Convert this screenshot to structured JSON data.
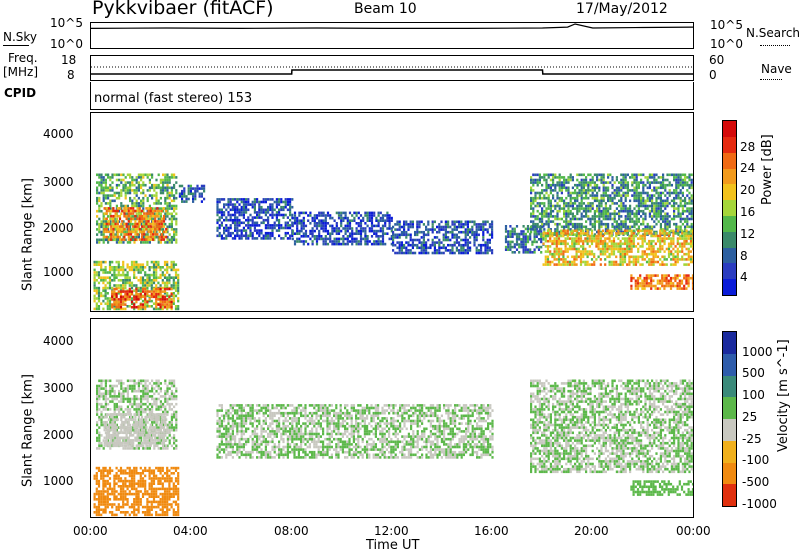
{
  "header": {
    "radar": "Pykkvibaer (fitACF)",
    "beam": "Beam 10",
    "date": "17/May/2012"
  },
  "nsky_panel": {
    "left_label": "N.Sky",
    "left_ticks": [
      "10^5",
      "10^0"
    ],
    "right_label": "N.Search",
    "right_ticks": [
      "10^5",
      "10^0"
    ]
  },
  "freq_panel": {
    "left_label_top": "Freq.",
    "left_label_unit": "[MHz]",
    "left_ticks": [
      "18",
      "8"
    ],
    "right_label": "Nave",
    "right_ticks": [
      "60",
      "0"
    ],
    "cpid_label": "CPID",
    "mode_text": "normal (fast stereo) 153"
  },
  "power_panel": {
    "ylabel": "Slant Range [km]",
    "yticks": [
      "4000",
      "3000",
      "2000",
      "1000"
    ],
    "colorbar_label": "Power [dB]",
    "colorbar_ticks": [
      "28",
      "24",
      "20",
      "16",
      "12",
      "8",
      "4"
    ],
    "colors": [
      "#0a1cd8",
      "#2a3cc0",
      "#2c5fa0",
      "#3a8a6a",
      "#52b84a",
      "#a5d63a",
      "#f2c21c",
      "#f29a1c",
      "#f06a14",
      "#e52a10",
      "#d40a0a"
    ]
  },
  "velocity_panel": {
    "ylabel": "Slant Range [km]",
    "yticks": [
      "4000",
      "3000",
      "2000",
      "1000"
    ],
    "colorbar_label": "Velocity [m s^-1]",
    "colorbar_ticks": [
      "1000",
      "500",
      "100",
      "25",
      "-25",
      "-100",
      "-500",
      "-1000"
    ],
    "colors": [
      "#1a2a9e",
      "#2e5cab",
      "#3a8a7a",
      "#5cb84a",
      "#c8c8c0",
      "#f0b01c",
      "#f08a10",
      "#e0300e"
    ]
  },
  "xaxis": {
    "ticks": [
      "00:00",
      "04:00",
      "08:00",
      "12:00",
      "16:00",
      "20:00",
      "00:00"
    ],
    "label": "Time UT"
  },
  "chart_data": [
    {
      "type": "line",
      "name": "nsky",
      "description_ref": "noise sky level (log scale 10^0..10^5)",
      "x_hours": [
        0,
        3,
        6,
        9,
        12,
        15,
        18,
        19,
        19.3,
        20,
        22,
        24
      ],
      "y_log10": [
        4.0,
        4.1,
        4.0,
        4.1,
        4.0,
        4.0,
        4.1,
        4.3,
        5.0,
        4.1,
        4.2,
        4.3
      ],
      "ylim_log10": [
        0,
        5
      ]
    },
    {
      "type": "line",
      "name": "freq",
      "x_hours": [
        0,
        2,
        3,
        8,
        8.01,
        18,
        18.01,
        24
      ],
      "y_mhz": [
        10,
        10,
        10,
        10,
        12,
        12,
        10,
        10
      ],
      "ylim": [
        8,
        18
      ]
    },
    {
      "type": "heatmap",
      "name": "power",
      "xlim_hours": [
        0,
        24
      ],
      "ylim_km": [
        180,
        4600
      ],
      "zlim_db": [
        0,
        30
      ],
      "regions": [
        {
          "t0": 0.2,
          "t1": 3.4,
          "r0": 1700,
          "r1": 3250,
          "value": 12
        },
        {
          "t0": 0.5,
          "t1": 3.0,
          "r0": 1750,
          "r1": 2500,
          "value": 22
        },
        {
          "t0": 0.1,
          "t1": 3.5,
          "r0": 250,
          "r1": 1300,
          "value": 14
        },
        {
          "t0": 0.8,
          "t1": 3.2,
          "r0": 250,
          "r1": 700,
          "value": 24
        },
        {
          "t0": 3.5,
          "t1": 4.5,
          "r0": 2600,
          "r1": 3000,
          "value": 6
        },
        {
          "t0": 5.0,
          "t1": 8.0,
          "r0": 1800,
          "r1": 2700,
          "value": 5
        },
        {
          "t0": 8.0,
          "t1": 12.0,
          "r0": 1700,
          "r1": 2400,
          "value": 5
        },
        {
          "t0": 12.0,
          "t1": 16.0,
          "r0": 1500,
          "r1": 2200,
          "value": 5
        },
        {
          "t0": 16.5,
          "t1": 18.0,
          "r0": 1500,
          "r1": 2100,
          "value": 8
        },
        {
          "t0": 17.5,
          "t1": 24.0,
          "r0": 1900,
          "r1": 3250,
          "value": 10
        },
        {
          "t0": 18.0,
          "t1": 24.0,
          "r0": 1200,
          "r1": 2000,
          "value": 18
        },
        {
          "t0": 21.5,
          "t1": 24.0,
          "r0": 700,
          "r1": 1000,
          "value": 22
        }
      ]
    },
    {
      "type": "heatmap",
      "name": "velocity",
      "xlim_hours": [
        0,
        24
      ],
      "ylim_km": [
        180,
        4600
      ],
      "zlim_ms": [
        -1000,
        1000
      ],
      "regions": [
        {
          "t0": 0.2,
          "t1": 3.4,
          "r0": 1700,
          "r1": 3250,
          "value": 0
        },
        {
          "t0": 0.5,
          "t1": 3.0,
          "r0": 1750,
          "r1": 2500,
          "value": -30
        },
        {
          "t0": 0.1,
          "t1": 3.5,
          "r0": 250,
          "r1": 1300,
          "value": -600
        },
        {
          "t0": 5.0,
          "t1": 16.0,
          "r0": 1500,
          "r1": 2700,
          "value": 0
        },
        {
          "t0": 17.5,
          "t1": 24.0,
          "r0": 1200,
          "r1": 3250,
          "value": 0
        },
        {
          "t0": 21.5,
          "t1": 24.0,
          "r0": 700,
          "r1": 1000,
          "value": 60
        }
      ]
    }
  ]
}
